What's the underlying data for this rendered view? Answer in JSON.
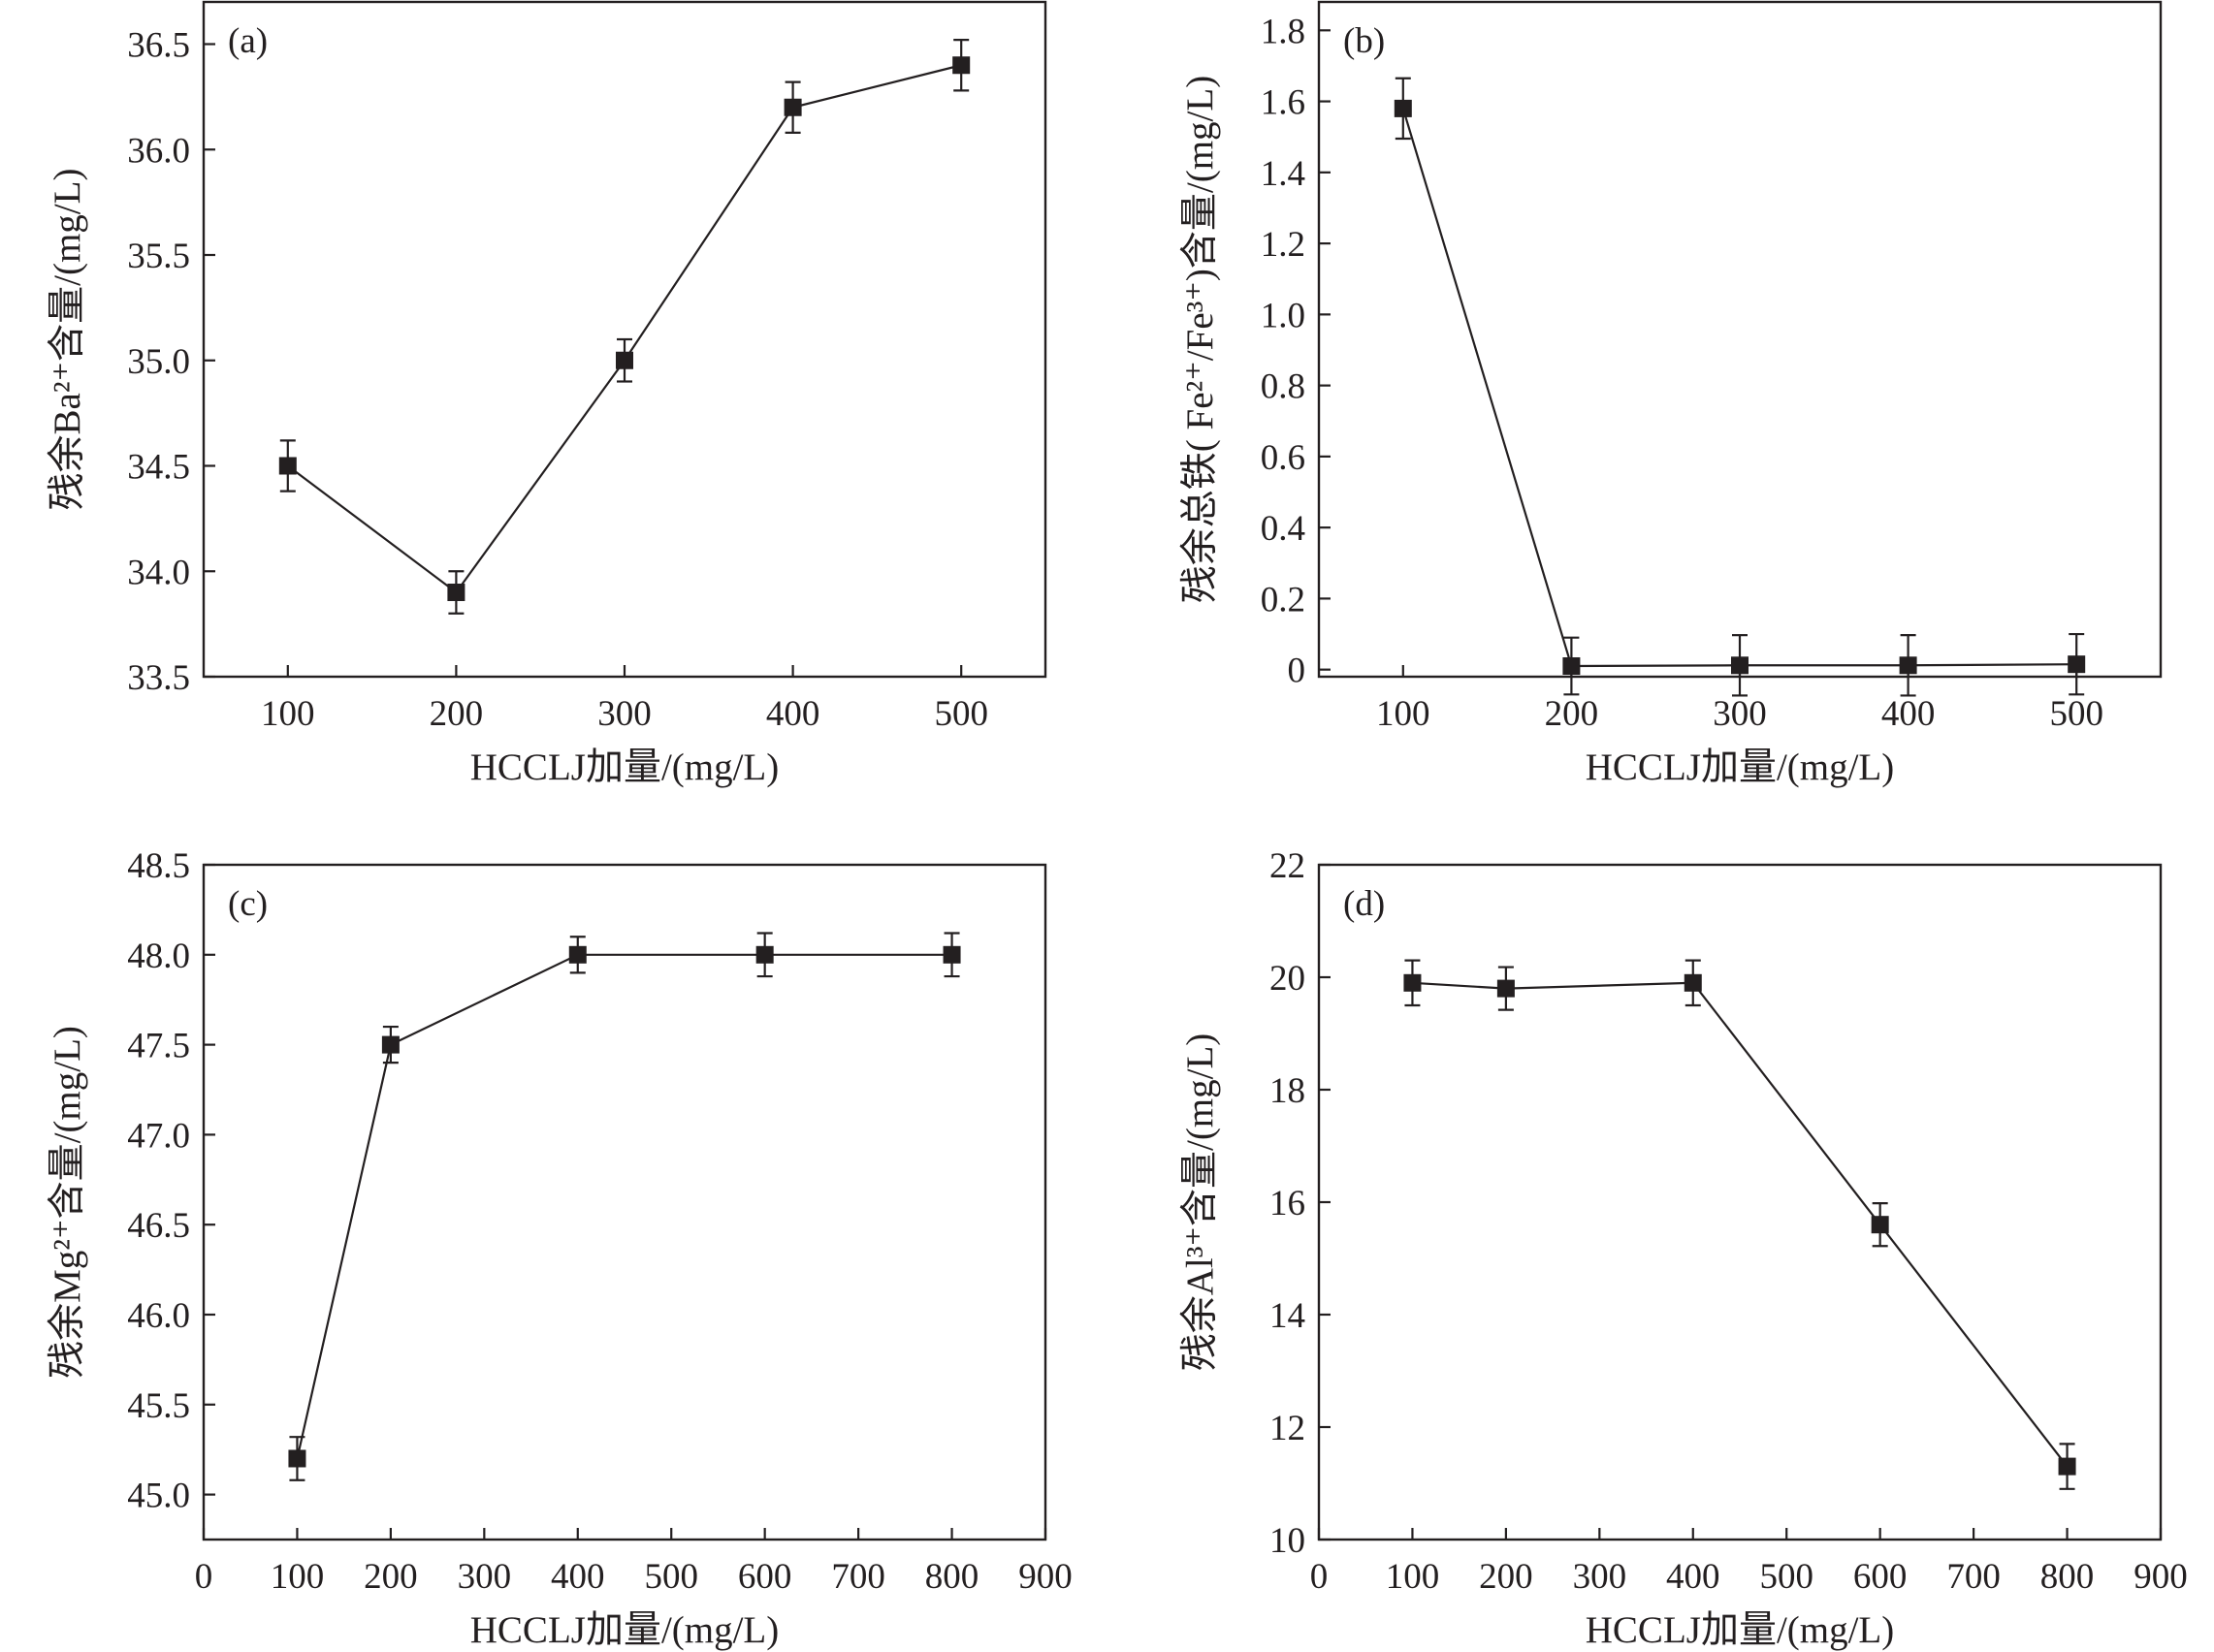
{
  "chart_data": [
    {
      "id": "a",
      "type": "line",
      "panel_label": "(a)",
      "xlabel": "HCCLJ加量/(mg/L)",
      "ylabel": "残余Ba²⁺含量/(mg/L)",
      "x_ticks": [
        100,
        200,
        300,
        400,
        500
      ],
      "y_ticks": [
        "33.5",
        "34.0",
        "34.5",
        "35.0",
        "35.5",
        "36.0",
        "36.5"
      ],
      "xlim": [
        50,
        550
      ],
      "ylim": [
        33.5,
        36.7
      ],
      "x": [
        100,
        200,
        300,
        400,
        500
      ],
      "y": [
        34.5,
        33.9,
        35.0,
        36.2,
        36.4
      ],
      "yerr": [
        0.12,
        0.1,
        0.1,
        0.12,
        0.12
      ],
      "marker": "square",
      "grid": false
    },
    {
      "id": "b",
      "type": "line",
      "panel_label": "(b)",
      "xlabel": "HCCLJ加量/(mg/L)",
      "ylabel": "残余总铁( Fe²⁺/Fe³⁺)含量/(mg/L)",
      "x_ticks": [
        100,
        200,
        300,
        400,
        500
      ],
      "y_ticks": [
        "0",
        "0.2",
        "0.4",
        "0.6",
        "0.8",
        "1.0",
        "1.2",
        "1.4",
        "1.6",
        "1.8"
      ],
      "xlim": [
        50,
        550
      ],
      "ylim": [
        -0.02,
        1.88
      ],
      "x": [
        100,
        200,
        300,
        400,
        500
      ],
      "y": [
        1.58,
        0.01,
        0.012,
        0.012,
        0.015
      ],
      "yerr": [
        0.085,
        0.08,
        0.085,
        0.085,
        0.085
      ],
      "marker": "square",
      "grid": false
    },
    {
      "id": "c",
      "type": "line",
      "panel_label": "(c)",
      "xlabel": "HCCLJ加量/(mg/L)",
      "ylabel": "残余Mg²⁺含量/(mg/L)",
      "x_ticks": [
        0,
        100,
        200,
        300,
        400,
        500,
        600,
        700,
        800,
        900
      ],
      "y_ticks": [
        "45.0",
        "45.5",
        "46.0",
        "46.5",
        "47.0",
        "47.5",
        "48.0",
        "48.5"
      ],
      "xlim": [
        0,
        900
      ],
      "ylim": [
        44.75,
        48.5
      ],
      "x": [
        100,
        200,
        400,
        600,
        800
      ],
      "y": [
        45.2,
        47.5,
        48.0,
        48.0,
        48.0
      ],
      "yerr": [
        0.12,
        0.1,
        0.1,
        0.12,
        0.12
      ],
      "marker": "square",
      "grid": false
    },
    {
      "id": "d",
      "type": "line",
      "panel_label": "(d)",
      "xlabel": "HCCLJ加量/(mg/L)",
      "ylabel": "残余Al³⁺含量/(mg/L)",
      "x_ticks": [
        0,
        100,
        200,
        300,
        400,
        500,
        600,
        700,
        800,
        900
      ],
      "y_ticks": [
        "10",
        "12",
        "14",
        "16",
        "18",
        "20",
        "22"
      ],
      "xlim": [
        0,
        900
      ],
      "ylim": [
        10,
        22
      ],
      "x": [
        100,
        200,
        400,
        600,
        800
      ],
      "y": [
        19.9,
        19.8,
        19.9,
        15.6,
        11.3
      ],
      "yerr": [
        0.4,
        0.38,
        0.4,
        0.38,
        0.4
      ],
      "marker": "square",
      "grid": false
    }
  ]
}
